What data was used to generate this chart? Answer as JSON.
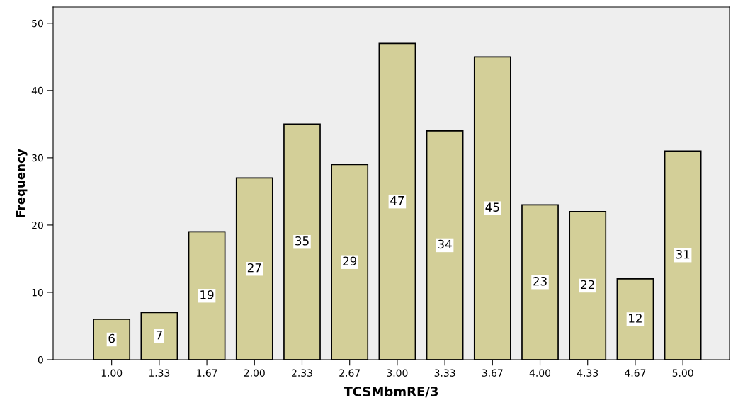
{
  "chart_data": {
    "type": "bar",
    "xlabel": "TCSMbmRE/3",
    "ylabel": "Frequency",
    "categories": [
      "1.00",
      "1.33",
      "1.67",
      "2.00",
      "2.33",
      "2.67",
      "3.00",
      "3.33",
      "3.67",
      "4.00",
      "4.33",
      "4.67",
      "5.00"
    ],
    "values": [
      6,
      7,
      19,
      27,
      35,
      29,
      47,
      34,
      45,
      23,
      22,
      12,
      31
    ],
    "color": "#d3cf98",
    "ylim": [
      0,
      52.4
    ],
    "yticks": [
      0,
      10,
      20,
      30,
      40,
      50
    ],
    "data_labels": true,
    "grid": false,
    "legend": false
  }
}
